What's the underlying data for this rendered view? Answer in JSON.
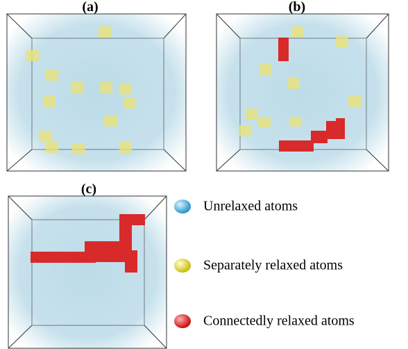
{
  "panels": [
    {
      "label": "(a)"
    },
    {
      "label": "(b)"
    },
    {
      "label": "(c)"
    }
  ],
  "legend": [
    {
      "label": "Unrelaxed atoms"
    },
    {
      "label": "Separately relaxed atoms"
    },
    {
      "label": "Connectedly relaxed atoms"
    }
  ]
}
